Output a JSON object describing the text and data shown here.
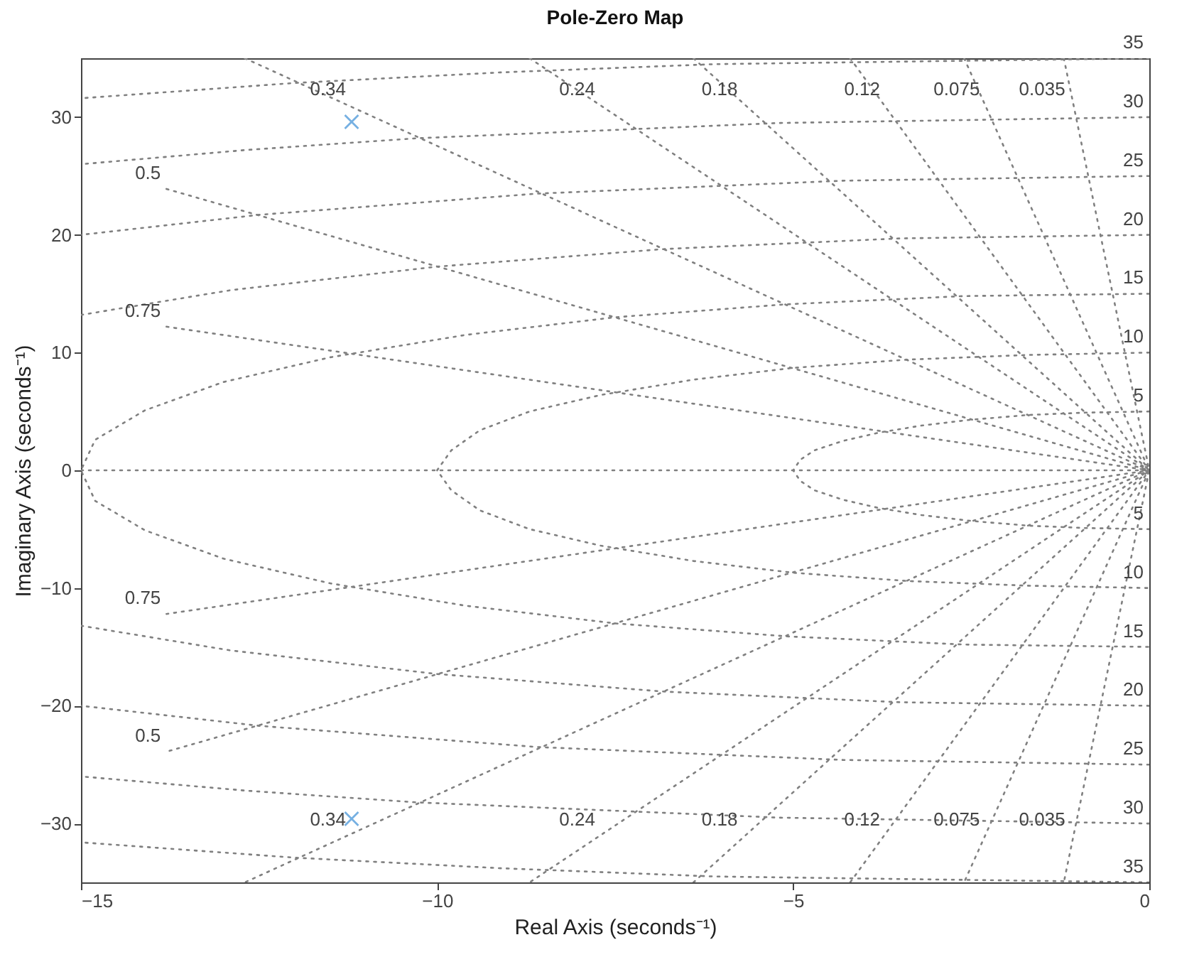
{
  "chart_data": {
    "type": "line",
    "title": "Pole-Zero Map",
    "xlabel": "Real Axis (seconds⁻¹)",
    "ylabel": "Imaginary Axis (seconds⁻¹)",
    "xlim": [
      -15,
      0
    ],
    "ylim": [
      -35,
      35
    ],
    "xticks": [
      -15,
      -10,
      -5,
      0
    ],
    "yticks": [
      -30,
      -20,
      -10,
      0,
      10,
      20,
      30
    ],
    "line_style": "dotted",
    "series": [
      {
        "color": "#808080",
        "x": [
          -1.2,
          0,
          -1.2
        ],
        "values": [
          35,
          0,
          -35
        ]
      },
      {
        "color": "#808080",
        "x": [
          -2.6,
          0,
          -2.6
        ],
        "values": [
          35,
          0,
          -35
        ]
      },
      {
        "color": "#808080",
        "x": [
          -4.2,
          0,
          -4.2
        ],
        "values": [
          35,
          0,
          -35
        ]
      },
      {
        "color": "#808080",
        "x": [
          -6.4,
          0,
          -6.4
        ],
        "values": [
          35,
          0,
          -35
        ]
      },
      {
        "color": "#808080",
        "x": [
          -8.7,
          0,
          -8.7
        ],
        "values": [
          35,
          0,
          -35
        ]
      },
      {
        "color": "#808080",
        "x": [
          -12.7,
          0,
          -12.7
        ],
        "values": [
          35,
          0,
          -35
        ]
      },
      {
        "color": "#808080",
        "x": [
          -13.8,
          0,
          -13.8
        ],
        "values": [
          23.9,
          0,
          -23.9
        ]
      },
      {
        "color": "#808080",
        "x": [
          -13.8,
          0,
          -13.8
        ],
        "values": [
          12.2,
          0,
          -12.2
        ]
      },
      {
        "color": "#808080",
        "x": [
          -15,
          0
        ],
        "values": [
          0,
          0
        ]
      },
      {
        "color": "#808080",
        "x": [
          0,
          -0.9,
          -1.7,
          -2.5,
          -3.2,
          -3.8,
          -4.3,
          -4.7,
          -4.9,
          -5,
          -4.9,
          -4.7,
          -4.3,
          -3.8,
          -3.2,
          -2.5,
          -1.7,
          -0.9,
          0
        ],
        "values": [
          5,
          4.9,
          4.7,
          4.3,
          3.8,
          3.2,
          2.5,
          1.7,
          0.9,
          0,
          -0.9,
          -1.7,
          -2.5,
          -3.2,
          -3.8,
          -4.3,
          -4.7,
          -4.9,
          -5
        ]
      },
      {
        "color": "#808080",
        "x": [
          0,
          -1.7,
          -3.4,
          -5,
          -6.4,
          -7.7,
          -8.7,
          -9.4,
          -9.8,
          -10,
          -9.8,
          -9.4,
          -8.7,
          -7.7,
          -6.4,
          -5,
          -3.4,
          -1.7,
          0
        ],
        "values": [
          10,
          9.8,
          9.4,
          8.7,
          7.7,
          6.4,
          5,
          3.4,
          1.7,
          0,
          -1.7,
          -3.4,
          -5,
          -6.4,
          -7.7,
          -8.7,
          -9.4,
          -9.8,
          -10
        ]
      },
      {
        "color": "#808080",
        "x": [
          0,
          -2.6,
          -5.1,
          -7.5,
          -9.6,
          -11.5,
          -13,
          -14.1,
          -14.8,
          -15,
          -14.8,
          -14.1,
          -13,
          -11.5,
          -9.6,
          -7.5,
          -5.1,
          -2.6,
          0
        ],
        "values": [
          15,
          14.8,
          14.1,
          13,
          11.5,
          9.6,
          7.5,
          5.1,
          2.6,
          0,
          -2.6,
          -5.1,
          -7.5,
          -9.6,
          -11.5,
          -13,
          -14.1,
          -14.8,
          -15
        ]
      },
      {
        "color": "#808080",
        "x": [
          0,
          -3.5,
          -6.8,
          -10,
          -12.9,
          -15
        ],
        "values": [
          20,
          19.7,
          18.8,
          17.3,
          15.3,
          13.2
        ]
      },
      {
        "color": "#808080",
        "x": [
          0,
          -3.5,
          -6.8,
          -10,
          -12.9,
          -15
        ],
        "values": [
          -20,
          -19.7,
          -18.8,
          -17.3,
          -15.3,
          -13.2
        ]
      },
      {
        "color": "#808080",
        "x": [
          0,
          -4.3,
          -8.6,
          -12.5,
          -15
        ],
        "values": [
          25,
          24.6,
          23.5,
          21.7,
          20
        ]
      },
      {
        "color": "#808080",
        "x": [
          0,
          -4.3,
          -8.6,
          -12.5,
          -15
        ],
        "values": [
          -25,
          -24.6,
          -23.5,
          -21.7,
          -20
        ]
      },
      {
        "color": "#808080",
        "x": [
          0,
          -5.2,
          -10.3,
          -12.7,
          -15
        ],
        "values": [
          30,
          29.5,
          28.2,
          27.2,
          26
        ]
      },
      {
        "color": "#808080",
        "x": [
          0,
          -5.2,
          -10.3,
          -12.7,
          -15
        ],
        "values": [
          -30,
          -29.5,
          -28.2,
          -27.2,
          -26
        ]
      },
      {
        "color": "#808080",
        "x": [
          0,
          -6.1,
          -9.1,
          -12,
          -15
        ],
        "values": [
          35,
          34.5,
          33.8,
          32.9,
          31.6
        ]
      },
      {
        "color": "#808080",
        "x": [
          0,
          -6.1,
          -9.1,
          -12,
          -15
        ],
        "values": [
          -35,
          -34.5,
          -33.8,
          -32.9,
          -31.6
        ]
      },
      {
        "type": "scatter",
        "marker": "cross",
        "color": "#3d8fd6",
        "x": [
          -11.2,
          -11.2
        ],
        "values": [
          29.6,
          -29.6
        ]
      }
    ],
    "annotations": [
      {
        "text": "0.34",
        "x": -11.2,
        "y": 31
      },
      {
        "text": "0.24",
        "x": -7.7,
        "y": 31
      },
      {
        "text": "0.18",
        "x": -5.7,
        "y": 31
      },
      {
        "text": "0.12",
        "x": -3.7,
        "y": 31
      },
      {
        "text": "0.075",
        "x": -2.3,
        "y": 31
      },
      {
        "text": "0.035",
        "x": -1.1,
        "y": 31
      },
      {
        "text": "0.34",
        "x": -11.2,
        "y": -31
      },
      {
        "text": "0.24",
        "x": -7.7,
        "y": -31
      },
      {
        "text": "0.18",
        "x": -5.7,
        "y": -31
      },
      {
        "text": "0.12",
        "x": -3.7,
        "y": -31
      },
      {
        "text": "0.075",
        "x": -2.3,
        "y": -31
      },
      {
        "text": "0.035",
        "x": -1.1,
        "y": -31
      },
      {
        "text": "0.5",
        "x": -13.8,
        "y": 23.9
      },
      {
        "text": "0.75",
        "x": -13.8,
        "y": 12.2
      },
      {
        "text": "0.5",
        "x": -13.8,
        "y": -23.9
      },
      {
        "text": "0.75",
        "x": -13.8,
        "y": -12.2
      },
      {
        "text": "5",
        "x": 0,
        "y": 5
      },
      {
        "text": "10",
        "x": 0,
        "y": 10
      },
      {
        "text": "15",
        "x": 0,
        "y": 15
      },
      {
        "text": "20",
        "x": 0,
        "y": 20
      },
      {
        "text": "25",
        "x": 0,
        "y": 25
      },
      {
        "text": "30",
        "x": 0,
        "y": 30
      },
      {
        "text": "35",
        "x": 0,
        "y": 35
      },
      {
        "text": "5",
        "x": 0,
        "y": -5
      },
      {
        "text": "10",
        "x": 0,
        "y": -10
      },
      {
        "text": "15",
        "x": 0,
        "y": -15
      },
      {
        "text": "20",
        "x": 0,
        "y": -20
      },
      {
        "text": "25",
        "x": 0,
        "y": -25
      },
      {
        "text": "30",
        "x": 0,
        "y": -30
      },
      {
        "text": "35",
        "x": 0,
        "y": -35
      }
    ]
  }
}
